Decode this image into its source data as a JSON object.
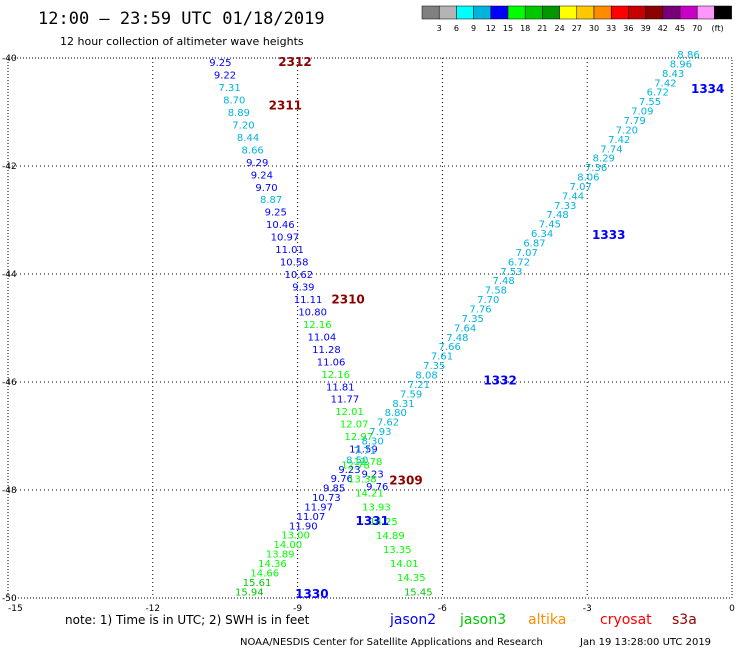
{
  "header": {
    "title": "12:00 – 23:59 UTC 01/18/2019",
    "subtitle": "12 hour collection of altimeter wave heights"
  },
  "legend": {
    "unit": "(ft)",
    "bins": [
      {
        "label": "",
        "color": "#808080"
      },
      {
        "label": "3",
        "color": "#b4b4b4"
      },
      {
        "label": "6",
        "color": "#00ffff"
      },
      {
        "label": "9",
        "color": "#00b4dc"
      },
      {
        "label": "12",
        "color": "#0000ff"
      },
      {
        "label": "15",
        "color": "#00ff00"
      },
      {
        "label": "18",
        "color": "#00c800"
      },
      {
        "label": "21",
        "color": "#009600"
      },
      {
        "label": "24",
        "color": "#ffff00"
      },
      {
        "label": "27",
        "color": "#ffc800"
      },
      {
        "label": "30",
        "color": "#ff8c00"
      },
      {
        "label": "33",
        "color": "#ff0000"
      },
      {
        "label": "36",
        "color": "#c80000"
      },
      {
        "label": "39",
        "color": "#8c0000"
      },
      {
        "label": "42",
        "color": "#780078"
      },
      {
        "label": "45",
        "color": "#c800c8"
      },
      {
        "label": "70",
        "color": "#ff96ff"
      },
      {
        "label": "",
        "color": "#000000"
      }
    ]
  },
  "chart_data": {
    "type": "scatter",
    "title": "12:00 – 23:59 UTC 01/18/2019",
    "subtitle": "12 hour collection of altimeter wave heights",
    "xlabel": "",
    "ylabel": "",
    "xlim": [
      -15,
      0
    ],
    "ylim": [
      -50,
      -40
    ],
    "x_ticks": [
      -15,
      -12,
      -9,
      -6,
      -3,
      0
    ],
    "y_ticks": [
      -50,
      -48,
      -46,
      -44,
      -42,
      -40
    ],
    "grid": true,
    "satellite_colors": {
      "jason2": "#0000ff",
      "jason3": "#00c800",
      "altika": "#ff8c00",
      "cryosat": "#ff0000",
      "s3a": "#8c0000"
    },
    "pass_labels": [
      {
        "text": "2312",
        "x": -9.4,
        "y": -40.15,
        "sat": "s3a"
      },
      {
        "text": "2311",
        "x": -9.6,
        "y": -40.95,
        "sat": "s3a"
      },
      {
        "text": "2310",
        "x": -8.3,
        "y": -44.55,
        "sat": "s3a"
      },
      {
        "text": "2309",
        "x": -7.1,
        "y": -47.9,
        "sat": "s3a"
      },
      {
        "text": "1334",
        "x": -0.85,
        "y": -40.65,
        "sat": "jason2"
      },
      {
        "text": "1333",
        "x": -2.9,
        "y": -43.35,
        "sat": "jason2"
      },
      {
        "text": "1332",
        "x": -5.15,
        "y": -46.05,
        "sat": "jason2"
      },
      {
        "text": "1331",
        "x": -7.8,
        "y": -48.65,
        "sat": "jason2"
      },
      {
        "text": "1330",
        "x": -9.05,
        "y": -50.0,
        "sat": "jason2"
      }
    ],
    "series": [
      {
        "name": "s3a",
        "x_start": -10.6,
        "y_start": -40.15,
        "x_end": -7.35,
        "y_end": -48.0,
        "values": [
          "9.25",
          "9.22",
          "7.31",
          "8.70",
          "8.89",
          "7.20",
          "8.44",
          "8.66",
          "9.29",
          "9.24",
          "9.70",
          "8.87",
          "9.25",
          "10.46",
          "10.97",
          "11.01",
          "10.58",
          "10.62",
          "9.39",
          "11.11",
          "10.80",
          "12.16",
          "11.04",
          "11.28",
          "11.06",
          "12.16",
          "11.81",
          "11.77",
          "12.01",
          "12.07",
          "12.97",
          "11.59",
          "12.78",
          "9.23",
          "9.76"
        ]
      },
      {
        "name": "jason2",
        "x_start": -0.9,
        "y_start": -40.0,
        "x_end": -10.0,
        "y_end": -49.95,
        "values": [
          "8.86",
          "8.96",
          "8.43",
          "7.42",
          "6.72",
          "7.55",
          "7.09",
          "7.79",
          "7.20",
          "7.42",
          "7.74",
          "8.29",
          "7.36",
          "8.06",
          "7.07",
          "7.44",
          "7.33",
          "7.48",
          "7.45",
          "6.34",
          "6.87",
          "7.07",
          "6.72",
          "7.53",
          "7.48",
          "7.58",
          "7.70",
          "7.76",
          "7.35",
          "7.64",
          "7.48",
          "7.66",
          "7.61",
          "7.35",
          "8.08",
          "7.21",
          "7.59",
          "8.31",
          "8.80",
          "7.62",
          "7.93",
          "8.30",
          "7.71",
          "8.50",
          "9.23",
          "9.76",
          "9.85",
          "10.73",
          "11.97",
          "11.07",
          "11.90",
          "13.00",
          "14.00",
          "13.89",
          "14.36",
          "14.66",
          "15.61",
          "15.94"
        ]
      },
      {
        "name": "jason3",
        "x_start": -7.8,
        "y_start": -47.6,
        "x_end": -6.5,
        "y_end": -49.95,
        "values": [
          "12.78",
          "13.38",
          "14.21",
          "13.93",
          "14.25",
          "14.89",
          "13.35",
          "14.01",
          "14.35",
          "15.45"
        ]
      }
    ]
  },
  "note": {
    "prefix": "note:  1) Time is in UTC;  2) SWH is in feet",
    "satellites": [
      {
        "name": "jason2",
        "color": "#0000ff"
      },
      {
        "name": "jason3",
        "color": "#00c800"
      },
      {
        "name": "altika",
        "color": "#ff8c00"
      },
      {
        "name": "cryosat",
        "color": "#ff0000"
      },
      {
        "name": "s3a",
        "color": "#8c0000"
      }
    ]
  },
  "footer": {
    "credit": "NOAA/NESDIS Center for Satellite Applications and Research",
    "timestamp": "Jan 19 13:28:00 UTC 2019"
  }
}
